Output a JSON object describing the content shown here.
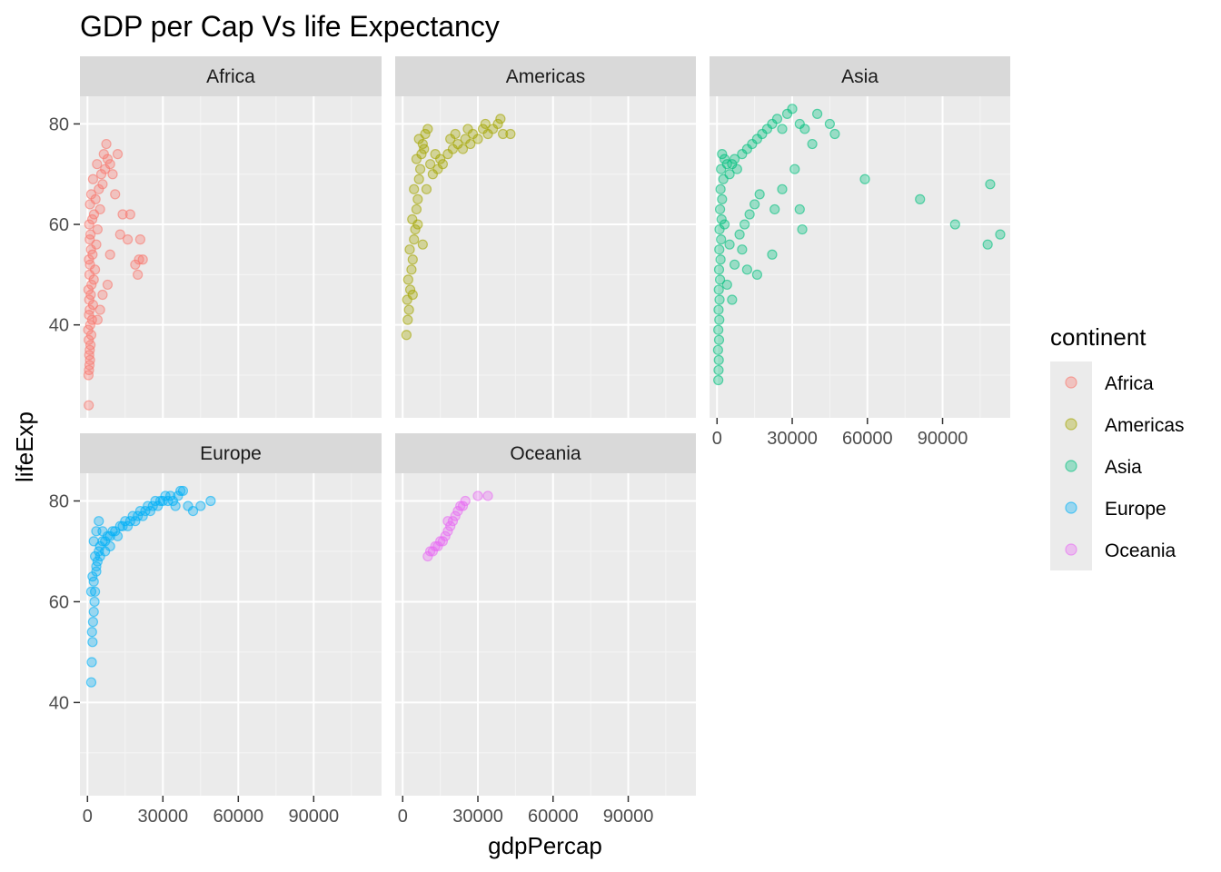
{
  "chart_data": {
    "type": "scatter",
    "title": "GDP per Cap Vs life Expectancy",
    "xlabel": "gdpPercap",
    "ylabel": "lifeExp",
    "xlim": [
      -3000,
      117000
    ],
    "ylim": [
      21.5,
      85.5
    ],
    "x_ticks": [
      0,
      30000,
      60000,
      90000
    ],
    "x_tick_labels": [
      "0",
      "30000",
      "60000",
      "90000"
    ],
    "y_ticks": [
      40,
      60,
      80
    ],
    "y_tick_labels": [
      "40",
      "60",
      "80"
    ],
    "grid": true,
    "legend": {
      "title": "continent",
      "placement": "right"
    },
    "colors": {
      "Africa": "#F8766D",
      "Americas": "#A3A500",
      "Asia": "#00BF7D",
      "Europe": "#00B0F6",
      "Oceania": "#E76BF3"
    },
    "series": [
      {
        "name": "Africa",
        "points": [
          [
            500,
            24
          ],
          [
            400,
            30
          ],
          [
            600,
            31
          ],
          [
            800,
            32
          ],
          [
            1000,
            33
          ],
          [
            700,
            34
          ],
          [
            900,
            35
          ],
          [
            1200,
            36
          ],
          [
            500,
            37
          ],
          [
            1500,
            38
          ],
          [
            300,
            39
          ],
          [
            1100,
            40
          ],
          [
            1800,
            41
          ],
          [
            600,
            42
          ],
          [
            900,
            43
          ],
          [
            2200,
            44
          ],
          [
            700,
            45
          ],
          [
            1300,
            46
          ],
          [
            400,
            47
          ],
          [
            1600,
            48
          ],
          [
            2500,
            49
          ],
          [
            800,
            50
          ],
          [
            3000,
            51
          ],
          [
            1000,
            52
          ],
          [
            600,
            53
          ],
          [
            2000,
            54
          ],
          [
            1400,
            55
          ],
          [
            3500,
            56
          ],
          [
            900,
            57
          ],
          [
            1200,
            58
          ],
          [
            4000,
            59
          ],
          [
            700,
            60
          ],
          [
            1900,
            61
          ],
          [
            2600,
            62
          ],
          [
            5000,
            63
          ],
          [
            1000,
            64
          ],
          [
            3200,
            65
          ],
          [
            1500,
            66
          ],
          [
            4500,
            67
          ],
          [
            6000,
            68
          ],
          [
            2200,
            69
          ],
          [
            5500,
            70
          ],
          [
            7000,
            71
          ],
          [
            3800,
            72
          ],
          [
            8000,
            73
          ],
          [
            6500,
            74
          ],
          [
            9000,
            72
          ],
          [
            12000,
            74
          ],
          [
            10000,
            70
          ],
          [
            7500,
            76
          ],
          [
            11000,
            66
          ],
          [
            14000,
            62
          ],
          [
            13000,
            58
          ],
          [
            16000,
            57
          ],
          [
            17000,
            62
          ],
          [
            21000,
            57
          ],
          [
            20000,
            50
          ],
          [
            19000,
            52
          ],
          [
            22000,
            53
          ],
          [
            20500,
            53
          ],
          [
            6000,
            46
          ],
          [
            8000,
            48
          ],
          [
            5000,
            43
          ],
          [
            9000,
            54
          ],
          [
            4000,
            41
          ]
        ]
      },
      {
        "name": "Americas",
        "points": [
          [
            1500,
            38
          ],
          [
            2000,
            41
          ],
          [
            2500,
            43
          ],
          [
            1800,
            45
          ],
          [
            3000,
            47
          ],
          [
            2200,
            49
          ],
          [
            3500,
            51
          ],
          [
            4000,
            53
          ],
          [
            2800,
            55
          ],
          [
            4500,
            57
          ],
          [
            5000,
            59
          ],
          [
            3800,
            61
          ],
          [
            5500,
            63
          ],
          [
            6000,
            65
          ],
          [
            4500,
            67
          ],
          [
            6500,
            69
          ],
          [
            7000,
            71
          ],
          [
            5500,
            73
          ],
          [
            7500,
            74
          ],
          [
            8000,
            76
          ],
          [
            6500,
            77
          ],
          [
            9000,
            78
          ],
          [
            10000,
            79
          ],
          [
            8500,
            75
          ],
          [
            11000,
            72
          ],
          [
            12000,
            70
          ],
          [
            13000,
            74
          ],
          [
            14000,
            71
          ],
          [
            15000,
            73
          ],
          [
            16000,
            72
          ],
          [
            18000,
            74
          ],
          [
            20000,
            75
          ],
          [
            19000,
            77
          ],
          [
            21000,
            78
          ],
          [
            22000,
            76
          ],
          [
            24000,
            75
          ],
          [
            25000,
            77
          ],
          [
            26000,
            79
          ],
          [
            27000,
            76
          ],
          [
            28000,
            78
          ],
          [
            30000,
            77
          ],
          [
            32000,
            79
          ],
          [
            33000,
            80
          ],
          [
            34000,
            78
          ],
          [
            36000,
            79
          ],
          [
            38000,
            80
          ],
          [
            39000,
            81
          ],
          [
            40000,
            78
          ],
          [
            43000,
            78
          ],
          [
            8000,
            56
          ],
          [
            6000,
            60
          ],
          [
            9500,
            67
          ],
          [
            4000,
            46
          ]
        ]
      },
      {
        "name": "Asia",
        "points": [
          [
            500,
            29
          ],
          [
            600,
            31
          ],
          [
            700,
            33
          ],
          [
            400,
            35
          ],
          [
            800,
            37
          ],
          [
            500,
            39
          ],
          [
            900,
            41
          ],
          [
            600,
            43
          ],
          [
            1000,
            45
          ],
          [
            700,
            47
          ],
          [
            1200,
            49
          ],
          [
            800,
            51
          ],
          [
            1400,
            53
          ],
          [
            900,
            55
          ],
          [
            1600,
            57
          ],
          [
            1000,
            59
          ],
          [
            1800,
            61
          ],
          [
            1200,
            63
          ],
          [
            2000,
            65
          ],
          [
            1400,
            67
          ],
          [
            2500,
            69
          ],
          [
            1600,
            71
          ],
          [
            3000,
            73
          ],
          [
            2000,
            74
          ],
          [
            4000,
            72
          ],
          [
            5000,
            70
          ],
          [
            6000,
            72
          ],
          [
            7000,
            73
          ],
          [
            8000,
            71
          ],
          [
            10000,
            74
          ],
          [
            12000,
            75
          ],
          [
            14000,
            76
          ],
          [
            16000,
            77
          ],
          [
            18000,
            78
          ],
          [
            20000,
            79
          ],
          [
            22000,
            80
          ],
          [
            24000,
            81
          ],
          [
            26000,
            79
          ],
          [
            28000,
            82
          ],
          [
            30000,
            83
          ],
          [
            33000,
            80
          ],
          [
            35000,
            79
          ],
          [
            40000,
            82
          ],
          [
            45000,
            80
          ],
          [
            47000,
            78
          ],
          [
            38000,
            76
          ],
          [
            31000,
            71
          ],
          [
            26000,
            67
          ],
          [
            23000,
            63
          ],
          [
            22000,
            54
          ],
          [
            33000,
            63
          ],
          [
            34000,
            59
          ],
          [
            16000,
            50
          ],
          [
            12000,
            51
          ],
          [
            10000,
            55
          ],
          [
            9000,
            58
          ],
          [
            11000,
            60
          ],
          [
            13000,
            62
          ],
          [
            15000,
            64
          ],
          [
            17000,
            66
          ],
          [
            59000,
            69
          ],
          [
            81000,
            65
          ],
          [
            95000,
            60
          ],
          [
            108000,
            56
          ],
          [
            113000,
            58
          ],
          [
            109000,
            68
          ],
          [
            6000,
            45
          ],
          [
            4000,
            48
          ],
          [
            7000,
            52
          ],
          [
            5000,
            56
          ],
          [
            3000,
            60
          ]
        ]
      },
      {
        "name": "Europe",
        "points": [
          [
            1500,
            44
          ],
          [
            1700,
            48
          ],
          [
            2000,
            52
          ],
          [
            1800,
            54
          ],
          [
            2200,
            56
          ],
          [
            2500,
            58
          ],
          [
            2800,
            60
          ],
          [
            3000,
            62
          ],
          [
            2000,
            65
          ],
          [
            3500,
            66
          ],
          [
            4000,
            68
          ],
          [
            3000,
            69
          ],
          [
            4500,
            70
          ],
          [
            5000,
            71
          ],
          [
            6000,
            72
          ],
          [
            7000,
            72
          ],
          [
            8000,
            73
          ],
          [
            9000,
            73
          ],
          [
            10000,
            74
          ],
          [
            11000,
            74
          ],
          [
            12000,
            73
          ],
          [
            13000,
            75
          ],
          [
            14000,
            75
          ],
          [
            15000,
            76
          ],
          [
            16000,
            75
          ],
          [
            17000,
            76
          ],
          [
            18000,
            77
          ],
          [
            19000,
            76
          ],
          [
            20000,
            77
          ],
          [
            21000,
            78
          ],
          [
            22000,
            77
          ],
          [
            23000,
            78
          ],
          [
            24000,
            79
          ],
          [
            25000,
            78
          ],
          [
            26000,
            79
          ],
          [
            27000,
            80
          ],
          [
            28000,
            79
          ],
          [
            29000,
            80
          ],
          [
            30000,
            80
          ],
          [
            31000,
            81
          ],
          [
            32000,
            80
          ],
          [
            33000,
            81
          ],
          [
            34000,
            80
          ],
          [
            35000,
            79
          ],
          [
            36000,
            81
          ],
          [
            37000,
            82
          ],
          [
            38000,
            82
          ],
          [
            40000,
            79
          ],
          [
            42000,
            78
          ],
          [
            45000,
            79
          ],
          [
            49000,
            80
          ],
          [
            2500,
            72
          ],
          [
            3500,
            74
          ],
          [
            4500,
            76
          ],
          [
            6000,
            74
          ],
          [
            1500,
            62
          ],
          [
            2500,
            64
          ],
          [
            3500,
            67
          ],
          [
            5000,
            69
          ],
          [
            7000,
            70
          ],
          [
            9000,
            71
          ]
        ]
      },
      {
        "name": "Oceania",
        "points": [
          [
            10000,
            69
          ],
          [
            11000,
            70
          ],
          [
            12000,
            70
          ],
          [
            13000,
            71
          ],
          [
            14000,
            71
          ],
          [
            15000,
            72
          ],
          [
            16000,
            72
          ],
          [
            17000,
            73
          ],
          [
            18000,
            74
          ],
          [
            19000,
            75
          ],
          [
            20000,
            76
          ],
          [
            21000,
            77
          ],
          [
            22000,
            78
          ],
          [
            23000,
            79
          ],
          [
            25000,
            80
          ],
          [
            30000,
            81
          ],
          [
            34000,
            81
          ],
          [
            18000,
            76
          ],
          [
            24000,
            79
          ]
        ]
      }
    ]
  }
}
